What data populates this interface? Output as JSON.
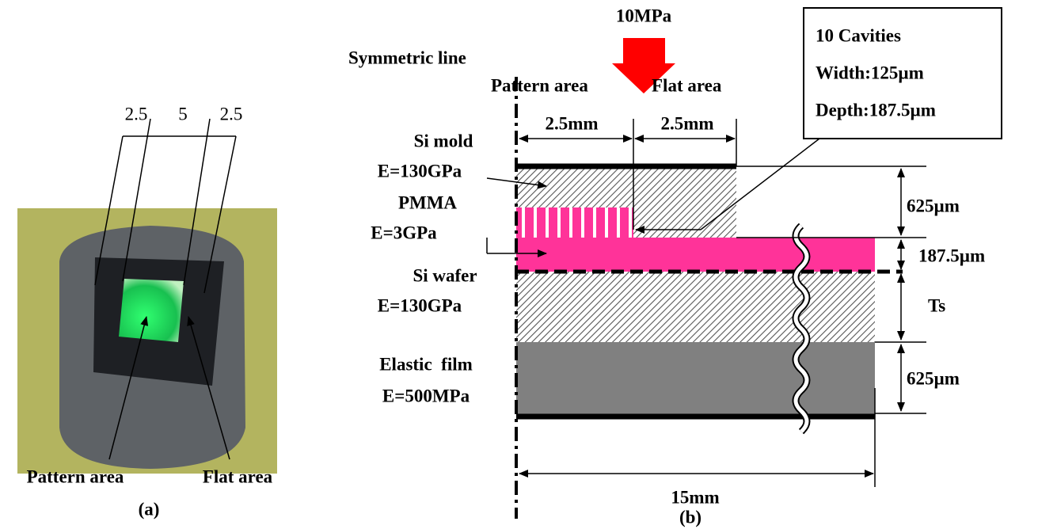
{
  "panel_a": {
    "dimensions": [
      "2.5",
      "5",
      "2.5"
    ],
    "labels": [
      "Pattern area",
      "Flat area"
    ],
    "caption": "(a)"
  },
  "panel_b": {
    "load": "10MPa",
    "symmetric_line": "Symmetric line",
    "regions": [
      "Pattern area",
      "Flat area"
    ],
    "region_widths": [
      "2.5mm",
      "2.5mm"
    ],
    "layers": [
      {
        "name": "Si mold",
        "modulus": "E=130GPa"
      },
      {
        "name": "PMMA",
        "modulus": "E=3GPa"
      },
      {
        "name": "Si wafer",
        "modulus": "E=130GPa"
      },
      {
        "name": "Elastic  film",
        "modulus": "E=500MPa"
      }
    ],
    "cavity_note": [
      "10 Cavities",
      "Width:125µm",
      "Depth:187.5µm"
    ],
    "thicknesses": [
      "625µm",
      "187.5µm",
      "Ts",
      "625µm"
    ],
    "total_width": "15mm",
    "caption": "(b)"
  }
}
